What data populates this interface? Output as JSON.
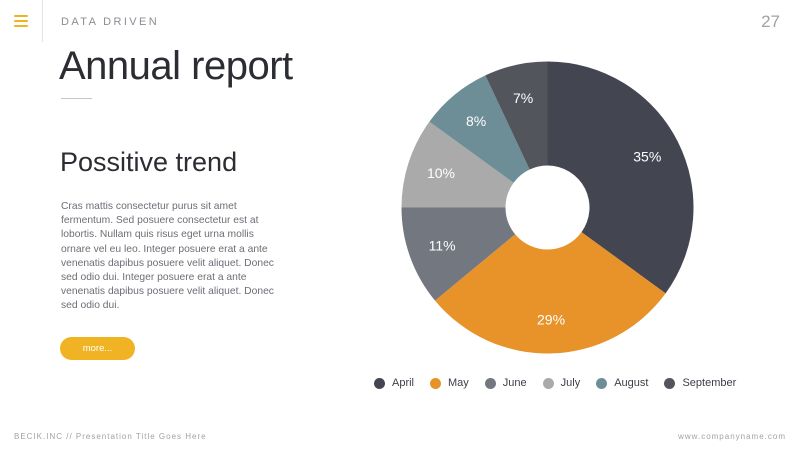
{
  "header": {
    "menu_icon": "hamburger-menu-icon",
    "brand": "DATA DRIVEN",
    "page_number": "27"
  },
  "main": {
    "title": "Annual report",
    "subtitle": "Possitive trend",
    "body": "Cras mattis consectetur purus sit amet fermentum. Sed posuere consectetur est at lobortis. Nullam quis risus eget urna mollis ornare vel eu leo. Integer posuere erat a ante venenatis dapibus posuere velit aliquet. Donec sed odio dui. Integer posuere erat a ante venenatis dapibus posuere velit aliquet. Donec sed odio dui.",
    "more_button": "more..."
  },
  "colors": {
    "accent": "#f0b323",
    "text_dark": "#2b2d33",
    "text_muted": "#6b6e75"
  },
  "chart_data": {
    "type": "pie",
    "donut": true,
    "start": "top, clockwise",
    "legend_position": "bottom",
    "title": "",
    "categories": [
      "April",
      "May",
      "June",
      "July",
      "August",
      "September"
    ],
    "values": [
      35,
      29,
      11,
      10,
      8,
      7
    ],
    "labels": [
      "35%",
      "29%",
      "11%",
      "10%",
      "8%",
      "7%"
    ],
    "colors": [
      "#434651",
      "#e8922a",
      "#737780",
      "#aaaaaa",
      "#6d8e96",
      "#52555c"
    ]
  },
  "footer": {
    "left": "BECIK.INC // Presentation Title Goes Here",
    "right": "www.companyname.com"
  }
}
